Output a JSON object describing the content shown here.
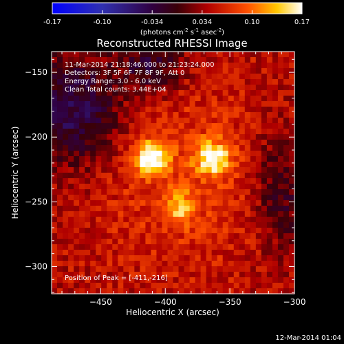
{
  "colorbar": {
    "ticks": [
      "-0.17",
      "-0.10",
      "-0.034",
      "0.034",
      "0.10",
      "0.17"
    ],
    "unit_main": "(photons cm",
    "unit_sup1": "-2",
    "unit_mid1": " s",
    "unit_sup2": "-1",
    "unit_mid2": " asec",
    "unit_sup3": "-2",
    "unit_end": ")"
  },
  "footer_timestamp": "12-Mar-2014 01:04",
  "chart_data": {
    "type": "heatmap",
    "title": "Reconstructed RHESSI Image",
    "xlabel": "Heliocentric X (arcsec)",
    "ylabel": "Heliocentric Y (arcsec)",
    "xlim": [
      -488,
      -300
    ],
    "ylim": [
      -321,
      -134
    ],
    "xticks": [
      -450,
      -400,
      -350,
      -300
    ],
    "xtick_labels": [
      "−450",
      "−400",
      "−350",
      "−300"
    ],
    "yticks": [
      -300,
      -250,
      -200,
      -150
    ],
    "ytick_labels": [
      "−300",
      "−250",
      "−200",
      "−150"
    ],
    "zlim": [
      -0.17,
      0.17
    ],
    "info_lines": [
      "11-Mar-2014 21:18:46.000 to 21:23:24.000",
      "Detectors: 3F 5F 6F 7F 8F 9F, Att 0",
      "Energy Range: 3.0 - 6.0 keV",
      "Clean     Total counts: 3.44E+04"
    ],
    "peak_label": "Position of Peak = [-411,-216]",
    "sources": [
      {
        "x": -411,
        "y": -216,
        "intensity": 0.17
      },
      {
        "x": -363,
        "y": -216,
        "intensity": 0.16
      },
      {
        "x": -389,
        "y": -255,
        "intensity": 0.11
      }
    ],
    "background_level": 0.045
  }
}
